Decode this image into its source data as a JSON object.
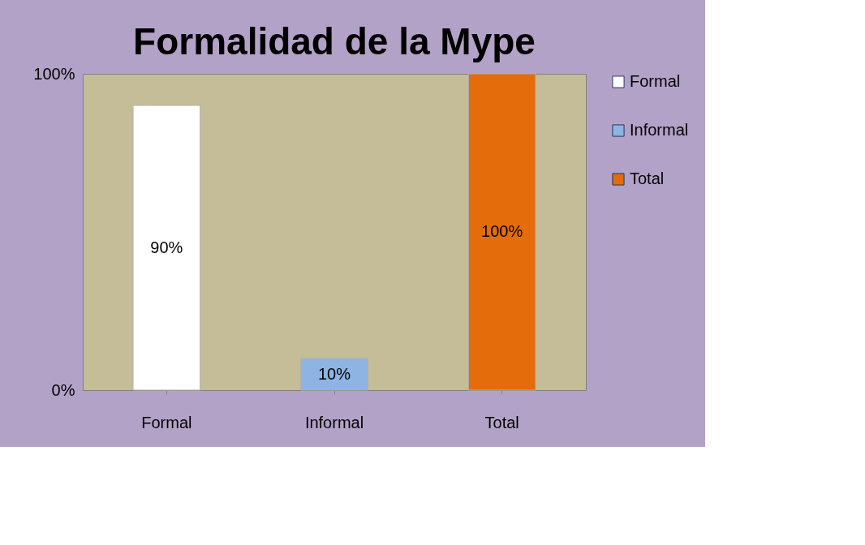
{
  "chart_data": {
    "type": "bar",
    "title": "Formalidad de la Mype",
    "categories": [
      "Formal",
      "Informal",
      "Total"
    ],
    "series": [
      {
        "name": "Formal",
        "color": "#ffffff",
        "values": [
          90,
          null,
          null
        ],
        "value_labels": [
          "90%",
          null,
          null
        ]
      },
      {
        "name": "Informal",
        "color": "#8db4e2",
        "values": [
          null,
          10,
          null
        ],
        "value_labels": [
          null,
          "10%",
          null
        ]
      },
      {
        "name": "Total",
        "color": "#e46c0a",
        "values": [
          null,
          null,
          100
        ],
        "value_labels": [
          null,
          null,
          "100%"
        ]
      }
    ],
    "ylim": [
      0,
      100
    ],
    "yticks": [
      {
        "value": 0,
        "label": "0%"
      },
      {
        "value": 100,
        "label": "100%"
      }
    ],
    "grid": false,
    "legend": "right"
  }
}
